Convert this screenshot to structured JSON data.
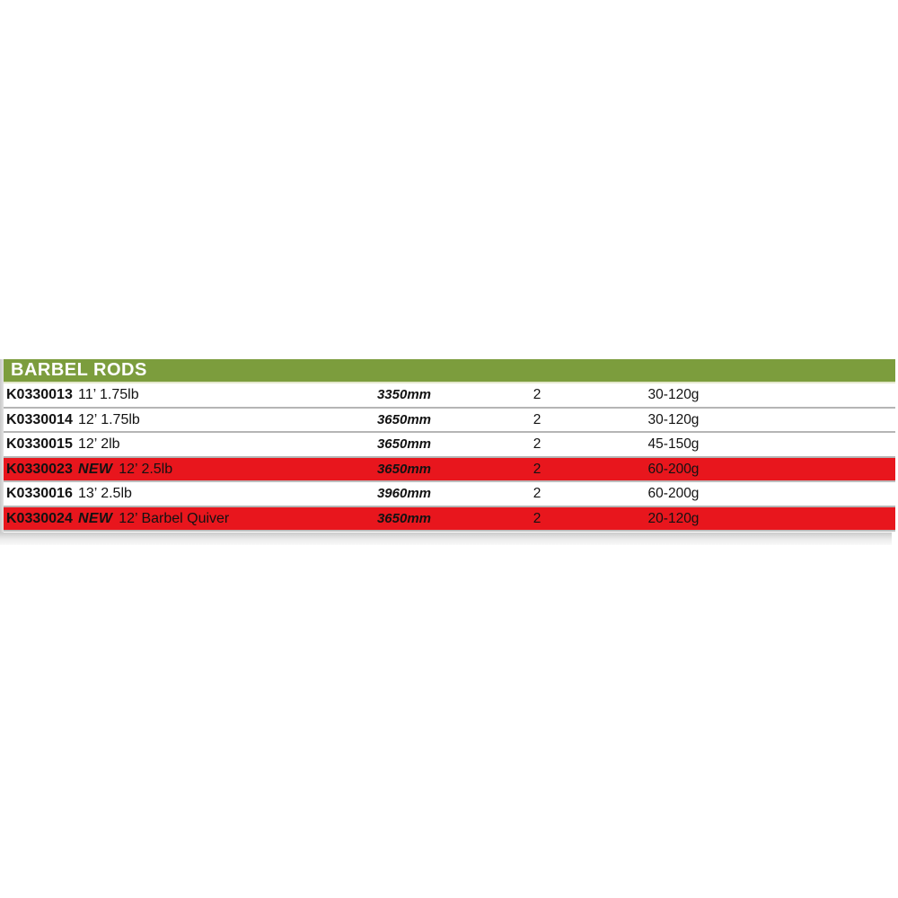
{
  "table": {
    "header": {
      "title": "BARBEL RODS",
      "background": "#7c9d3d",
      "text_color": "#ffffff"
    },
    "highlight_color": "#e8161d",
    "new_label": "NEW",
    "rows": [
      {
        "code": "K0330013",
        "new": false,
        "description": "11’ 1.75lb",
        "length": "3350mm",
        "sections": "2",
        "casting_weight": "30-120g",
        "highlighted": false
      },
      {
        "code": "K0330014",
        "new": false,
        "description": "12’ 1.75lb",
        "length": "3650mm",
        "sections": "2",
        "casting_weight": "30-120g",
        "highlighted": false
      },
      {
        "code": "K0330015",
        "new": false,
        "description": "12’ 2lb",
        "length": "3650mm",
        "sections": "2",
        "casting_weight": "45-150g",
        "highlighted": false
      },
      {
        "code": "K0330023",
        "new": true,
        "description": "12’ 2.5lb",
        "length": "3650mm",
        "sections": "2",
        "casting_weight": "60-200g",
        "highlighted": true
      },
      {
        "code": "K0330016",
        "new": false,
        "description": "13’ 2.5lb",
        "length": "3960mm",
        "sections": "2",
        "casting_weight": "60-200g",
        "highlighted": false
      },
      {
        "code": "K0330024",
        "new": true,
        "description": "12’ Barbel Quiver",
        "length": "3650mm",
        "sections": "2",
        "casting_weight": "20-120g",
        "highlighted": true
      }
    ]
  }
}
